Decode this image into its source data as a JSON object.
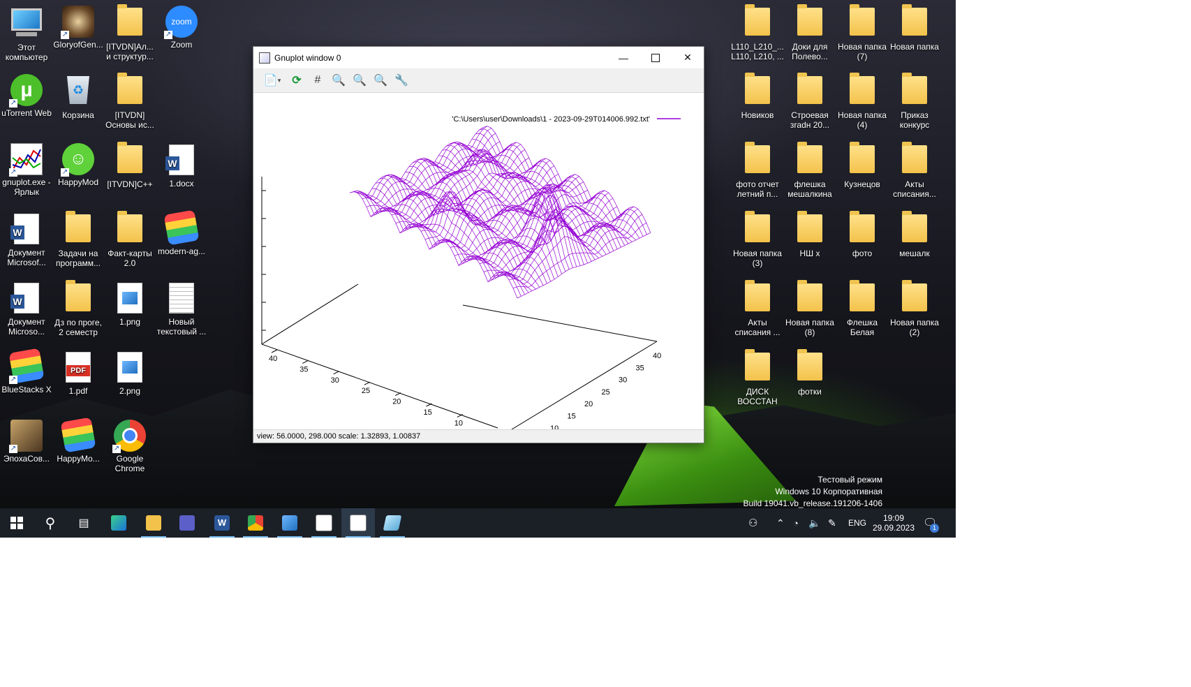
{
  "desktop_left": [
    {
      "label": "Этот компьютер",
      "icon": "computer-icon"
    },
    {
      "label": "GloryofGen...",
      "icon": "game-icon"
    },
    {
      "label": "[ITVDN]Ал... и структур...",
      "icon": "folder-icon"
    },
    {
      "label": "Zoom",
      "icon": "zoom-icon"
    },
    {
      "label": "uTorrent Web",
      "icon": "utorrent-icon"
    },
    {
      "label": "Корзина",
      "icon": "recycle-bin-icon"
    },
    {
      "label": "[ITVDN] Основы ис...",
      "icon": "folder-icon"
    },
    {
      "label": "gnuplot.exe - Ярлык",
      "icon": "gnuplot-icon"
    },
    {
      "label": "HappyMod",
      "icon": "happymod-icon"
    },
    {
      "label": "[ITVDN]C++",
      "icon": "folder-icon"
    },
    {
      "label": "1.docx",
      "icon": "word-doc-icon"
    },
    {
      "label": "Документ Microsof...",
      "icon": "word-doc-icon"
    },
    {
      "label": "Задачи на программ...",
      "icon": "folder-icon"
    },
    {
      "label": "Факт-карты 2.0",
      "icon": "folder-icon"
    },
    {
      "label": "modern-ag...",
      "icon": "bluestacks-icon"
    },
    {
      "label": "Документ Microso...",
      "icon": "word-doc-icon"
    },
    {
      "label": "Дз по проге, 2 семестр",
      "icon": "folder-icon"
    },
    {
      "label": "1.png",
      "icon": "image-file-icon"
    },
    {
      "label": "Новый текстовый ...",
      "icon": "text-file-icon"
    },
    {
      "label": "BlueStacks X",
      "icon": "bluestacks-icon"
    },
    {
      "label": "1.pdf",
      "icon": "pdf-file-icon"
    },
    {
      "label": "2.png",
      "icon": "image-file-icon"
    },
    {
      "label": "ЭпохаСов...",
      "icon": "game-icon"
    },
    {
      "label": "HappyMo...",
      "icon": "bluestacks-icon"
    },
    {
      "label": "Google Chrome",
      "icon": "chrome-icon"
    }
  ],
  "desktop_right": [
    {
      "label": "L110_L210_... L110, L210, ..."
    },
    {
      "label": "Доки для Полево..."
    },
    {
      "label": "Новая папка (7)"
    },
    {
      "label": "Новая папка"
    },
    {
      "label": "Новиков"
    },
    {
      "label": "Строевая зradн 20..."
    },
    {
      "label": "Новая папка (4)"
    },
    {
      "label": "Приказ конкурс"
    },
    {
      "label": "фото отчет летний п..."
    },
    {
      "label": "флешка мешалкина"
    },
    {
      "label": "Кузнецов"
    },
    {
      "label": "Акты списания..."
    },
    {
      "label": "Новая папка (3)"
    },
    {
      "label": "НШ х"
    },
    {
      "label": "фото"
    },
    {
      "label": "мешалк"
    },
    {
      "label": "Акты списания ..."
    },
    {
      "label": "Новая папка (8)"
    },
    {
      "label": "Флешка Белая"
    },
    {
      "label": "Новая папка (2)"
    },
    {
      "label": "ДИСК ВОССТАН"
    },
    {
      "label": "фотки"
    }
  ],
  "gnuplot_window": {
    "title": "Gnuplot window 0",
    "legend": "'C:\\Users\\user\\Downloads\\1 - 2023-09-29T014006.992.txt'",
    "status": "view:  56.0000,  298.000   scale:  1.32893,  1.00837",
    "series_color": "#9400d3",
    "x_ticks": [
      "40",
      "35",
      "30",
      "25",
      "20",
      "15",
      "10"
    ],
    "y_ticks": [
      "40",
      "35",
      "30",
      "25",
      "20",
      "15",
      "10"
    ]
  },
  "watermark": {
    "line1": "Тестовый режим",
    "line2": "Windows 10 Корпоративная",
    "line3": "Build 19041.vb_release.191206-1406"
  },
  "taskbar": {
    "lang": "ENG",
    "time": "19:09",
    "date": "29.09.2023",
    "notification_count": "1"
  }
}
